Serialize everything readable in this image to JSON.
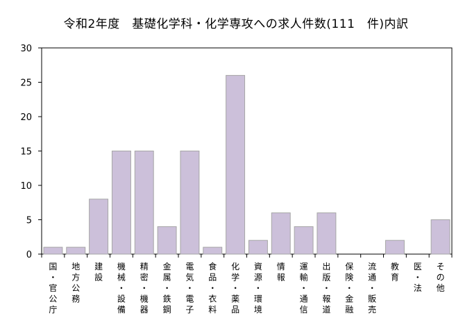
{
  "chart_data": {
    "type": "bar",
    "title": "令和2年度　基礎化学科・化学専攻への求人件数(111　件)内訳",
    "xlabel": "",
    "ylabel": "",
    "ylim": [
      0,
      30
    ],
    "yticks": [
      0,
      5,
      10,
      15,
      20,
      25,
      30
    ],
    "grid": false,
    "legend": "none",
    "bar_color": "#ccc0da",
    "bar_edge_color": "#a6a6a6",
    "categories": [
      "国・官公庁",
      "地方公務",
      "建設",
      "機械・設備",
      "精密・機器",
      "金属・鉄鋼",
      "電気・電子",
      "食品・衣料",
      "化学・薬品",
      "資源・環境",
      "情報",
      "運輸・通信",
      "出版・報道",
      "保険・金融",
      "流通・販売",
      "教育",
      "医・法",
      "その他"
    ],
    "values": [
      1,
      1,
      8,
      15,
      15,
      4,
      15,
      1,
      26,
      2,
      6,
      4,
      6,
      0,
      0,
      2,
      0,
      5
    ]
  }
}
